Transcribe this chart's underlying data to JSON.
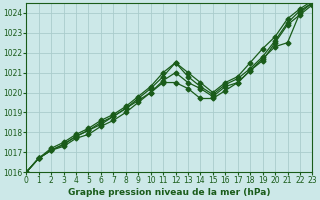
{
  "background_color": "#cce8e8",
  "grid_color": "#aacccc",
  "line_color": "#1a5c1a",
  "title": "Graphe pression niveau de la mer (hPa)",
  "xlim": [
    0,
    23
  ],
  "ylim": [
    1016,
    1024.5
  ],
  "yticks": [
    1016,
    1017,
    1018,
    1019,
    1020,
    1021,
    1022,
    1023,
    1024
  ],
  "xticks": [
    0,
    1,
    2,
    3,
    4,
    5,
    6,
    7,
    8,
    9,
    10,
    11,
    12,
    13,
    14,
    15,
    16,
    17,
    18,
    19,
    20,
    21,
    22,
    23
  ],
  "xtick_labels": [
    "0",
    "1",
    "2",
    "3",
    "4",
    "5",
    "6",
    "7",
    "8",
    "9",
    "10",
    "11",
    "12",
    "13",
    "14",
    "15",
    "16",
    "17",
    "18",
    "19",
    "20",
    "21",
    "22",
    "23"
  ],
  "series": [
    [
      1016.0,
      1016.7,
      1017.1,
      1017.3,
      1017.7,
      1017.9,
      1018.3,
      1018.6,
      1019.0,
      1019.5,
      1020.0,
      1020.5,
      1020.5,
      1020.2,
      1019.7,
      1019.7,
      1020.1,
      1020.5,
      1021.1,
      1021.6,
      1022.5,
      1023.4,
      1023.9,
      1024.4
    ],
    [
      1016.0,
      1016.7,
      1017.1,
      1017.4,
      1017.8,
      1018.1,
      1018.4,
      1018.8,
      1019.2,
      1019.6,
      1020.0,
      1020.6,
      1021.0,
      1020.5,
      1020.2,
      1019.8,
      1020.3,
      1020.5,
      1021.1,
      1021.7,
      1022.3,
      1022.5,
      1024.0,
      1024.5
    ],
    [
      1016.0,
      1016.7,
      1017.2,
      1017.5,
      1017.9,
      1018.2,
      1018.6,
      1018.9,
      1019.3,
      1019.8,
      1020.3,
      1021.0,
      1021.5,
      1020.8,
      1020.3,
      1019.9,
      1020.4,
      1020.7,
      1021.2,
      1021.8,
      1022.6,
      1023.5,
      1024.1,
      1024.5
    ],
    [
      1016.0,
      1016.7,
      1017.1,
      1017.4,
      1017.8,
      1018.1,
      1018.5,
      1018.8,
      1019.2,
      1019.7,
      1020.2,
      1020.8,
      1021.5,
      1021.0,
      1020.5,
      1020.0,
      1020.5,
      1020.8,
      1021.5,
      1022.2,
      1022.8,
      1023.7,
      1024.2,
      1024.6
    ]
  ],
  "marker": "D",
  "markersize": 2.5,
  "linewidth": 0.9,
  "tick_labelsize": 5.5,
  "xlabel_fontsize": 6.5,
  "xlabel_fontweight": "bold"
}
